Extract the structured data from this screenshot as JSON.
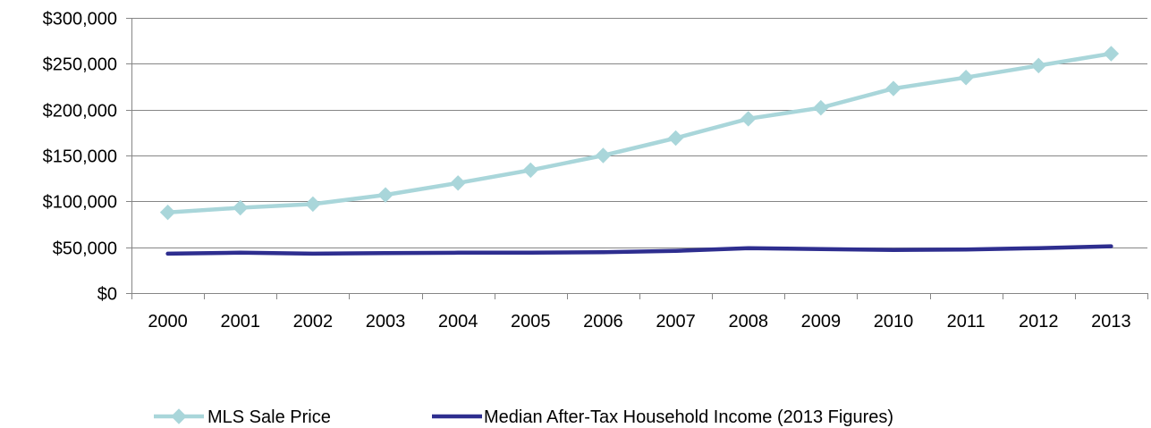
{
  "chart_data": {
    "type": "line",
    "title": "",
    "xlabel": "",
    "ylabel": "",
    "categories": [
      "2000",
      "2001",
      "2002",
      "2003",
      "2004",
      "2005",
      "2006",
      "2007",
      "2008",
      "2009",
      "2010",
      "2011",
      "2012",
      "2013"
    ],
    "ylim": [
      0,
      300000
    ],
    "yticks": [
      0,
      50000,
      100000,
      150000,
      200000,
      250000,
      300000
    ],
    "ytick_labels": [
      "$0",
      "$50,000",
      "$100,000",
      "$150,000",
      "$200,000",
      "$250,000",
      "$300,000"
    ],
    "grid": "horizontal",
    "legend_position": "bottom",
    "series": [
      {
        "name": "MLS Sale Price",
        "color": "#a9d6da",
        "marker": "diamond",
        "values": [
          88000,
          93000,
          97000,
          107000,
          120000,
          134000,
          150000,
          169000,
          190000,
          202000,
          223000,
          235000,
          248000,
          261000
        ]
      },
      {
        "name": "Median After-Tax Household Income (2013 Figures)",
        "color": "#2e2e8f",
        "marker": "none",
        "values": [
          43000,
          44000,
          43000,
          43500,
          44000,
          44000,
          44500,
          46000,
          49000,
          48000,
          47000,
          47500,
          49000,
          51000
        ]
      }
    ]
  }
}
